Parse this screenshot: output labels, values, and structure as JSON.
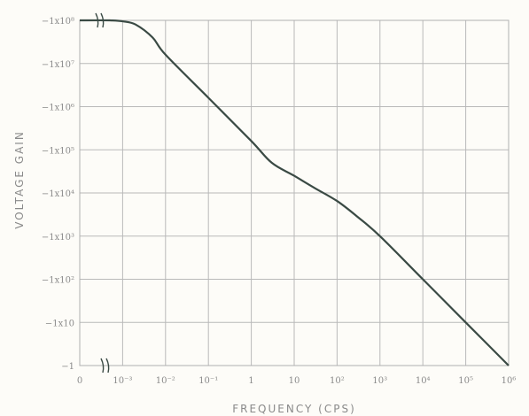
{
  "chart_data": {
    "type": "line",
    "xlabel": "FREQUENCY (CPS)",
    "ylabel": "VOLTAGE GAIN",
    "x_scale": "log",
    "y_scale": "log",
    "x_ticks": [
      "0",
      "10⁻³",
      "10⁻²",
      "10⁻¹",
      "1",
      "10",
      "10²",
      "10³",
      "10⁴",
      "10⁵",
      "10⁶"
    ],
    "x_tick_values": [
      0,
      0.001,
      0.01,
      0.1,
      1,
      10,
      100,
      1000,
      10000,
      100000,
      1000000
    ],
    "y_ticks": [
      "−1x10⁸",
      "−1x10⁷",
      "−1x10⁶",
      "−1x10⁵",
      "−1x10⁴",
      "−1x10³",
      "−1x10²",
      "−1x10",
      "−1"
    ],
    "y_tick_values": [
      100000000,
      10000000,
      1000000,
      100000,
      10000,
      1000,
      100,
      10,
      1
    ],
    "axis_break": true,
    "grid": true,
    "series": [
      {
        "points": [
          {
            "x": 0,
            "y": 100000000
          },
          {
            "x": 0.0005,
            "y": 100000000
          },
          {
            "x": 0.001,
            "y": 95000000
          },
          {
            "x": 0.002,
            "y": 80000000
          },
          {
            "x": 0.005,
            "y": 40000000
          },
          {
            "x": 0.01,
            "y": 16000000
          },
          {
            "x": 0.1,
            "y": 1600000
          },
          {
            "x": 1,
            "y": 160000
          },
          {
            "x": 3,
            "y": 50000
          },
          {
            "x": 10,
            "y": 25000
          },
          {
            "x": 30,
            "y": 13000
          },
          {
            "x": 100,
            "y": 6500
          },
          {
            "x": 300,
            "y": 2800
          },
          {
            "x": 1000,
            "y": 1000
          },
          {
            "x": 10000,
            "y": 100
          },
          {
            "x": 100000,
            "y": 10
          },
          {
            "x": 1000000,
            "y": 1
          }
        ]
      }
    ]
  }
}
